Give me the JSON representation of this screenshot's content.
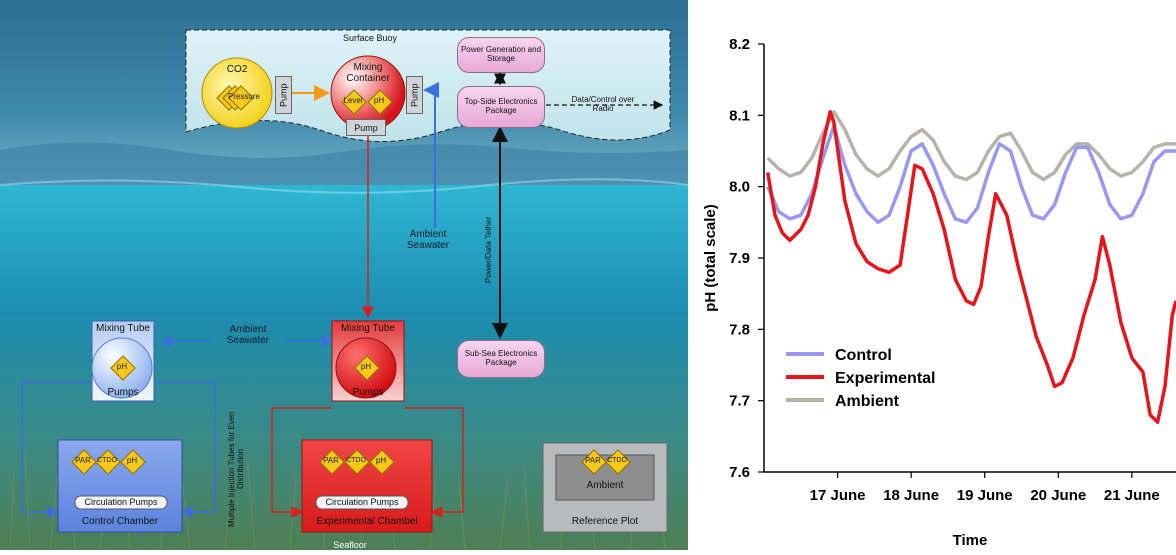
{
  "diagram": {
    "surface_buoy": "Surface Buoy",
    "co2": "CO2",
    "pressure": "Pressure",
    "pump_left": "Pump",
    "pump_right": "Pump",
    "pump_bottom": "Pump",
    "mixing_container": "Mixing Container",
    "level": "Level",
    "ph": "pH",
    "power_gen": "Power Generation and Storage",
    "topside": "Top-Side Electronics Package",
    "data_control": "Data/Control over Radio",
    "ambient_seawater_top": "Ambient Seawater",
    "ambient_seawater_mid": "Ambient Seawater",
    "power_tether": "Power/Data Tether",
    "subsea": "Sub-Sea Electronics Package",
    "mixing_tube_left": "Mixing Tube",
    "mixing_tube_right": "Mixing Tube",
    "pumps_left": "Pumps",
    "pumps_right": "Pumps",
    "par": "PAR",
    "ctdo": "CTDO",
    "circulation_pumps_left": "Circulation Pumps",
    "circulation_pumps_right": "Circulation Pumps",
    "control_chamber": "Control Chamber",
    "experimental_chamber": "Experimental Chambei",
    "injection_note": "Multiple Injection Tubes for Even Distribution",
    "ambient": "Ambient",
    "reference_plot": "Reference Plot",
    "seafloor": "Seafloor",
    "colors": {
      "control_blue": "#4a78d8",
      "experimental_red": "#e0201c",
      "power_pink": "#e9b0db",
      "diamond_yellow": "#f6c81a"
    }
  },
  "chart_data": {
    "type": "line",
    "xlabel": "Time",
    "ylabel": "pH (total scale)",
    "ylim": [
      7.6,
      8.2
    ],
    "yticks": [
      "7.6",
      "7.7",
      "7.8",
      "7.9",
      "8.0",
      "8.1",
      "8.2"
    ],
    "xlim": [
      16.0,
      21.6
    ],
    "xticks": [
      {
        "value": 17,
        "label": "17 June"
      },
      {
        "value": 18,
        "label": "18 June"
      },
      {
        "value": 19,
        "label": "19 June"
      },
      {
        "value": 20,
        "label": "20 June"
      },
      {
        "value": 21,
        "label": "21 June"
      }
    ],
    "legend_position": "bottom-left",
    "series": [
      {
        "name": "Control",
        "color": "#9898f0",
        "x": [
          16.05,
          16.2,
          16.35,
          16.5,
          16.65,
          16.8,
          16.95,
          17.1,
          17.25,
          17.4,
          17.55,
          17.7,
          17.85,
          18.0,
          18.15,
          18.3,
          18.45,
          18.6,
          18.75,
          18.9,
          19.05,
          19.2,
          19.35,
          19.5,
          19.65,
          19.8,
          19.95,
          20.1,
          20.25,
          20.4,
          20.55,
          20.7,
          20.85,
          21.0,
          21.15,
          21.3,
          21.45,
          21.6
        ],
        "values": [
          8.0,
          7.965,
          7.955,
          7.96,
          7.99,
          8.04,
          8.085,
          8.03,
          7.99,
          7.965,
          7.95,
          7.96,
          8.0,
          8.05,
          8.06,
          8.03,
          7.99,
          7.955,
          7.95,
          7.97,
          8.02,
          8.06,
          8.05,
          8.0,
          7.96,
          7.955,
          7.975,
          8.02,
          8.055,
          8.055,
          8.02,
          7.975,
          7.955,
          7.96,
          7.99,
          8.035,
          8.05,
          8.05
        ]
      },
      {
        "name": "Experimental",
        "color": "#e8141b",
        "x": [
          16.05,
          16.15,
          16.25,
          16.35,
          16.5,
          16.6,
          16.7,
          16.8,
          16.9,
          16.95,
          17.1,
          17.25,
          17.4,
          17.55,
          17.7,
          17.85,
          17.95,
          18.05,
          18.15,
          18.3,
          18.45,
          18.6,
          18.75,
          18.85,
          18.95,
          19.05,
          19.15,
          19.3,
          19.45,
          19.6,
          19.7,
          19.85,
          19.95,
          20.05,
          20.2,
          20.35,
          20.5,
          20.6,
          20.7,
          20.85,
          21.0,
          21.15,
          21.25,
          21.35,
          21.45,
          21.55,
          21.6
        ],
        "values": [
          8.02,
          7.96,
          7.935,
          7.925,
          7.94,
          7.96,
          8.0,
          8.06,
          8.105,
          8.09,
          7.98,
          7.92,
          7.895,
          7.885,
          7.88,
          7.89,
          7.96,
          8.03,
          8.025,
          7.99,
          7.94,
          7.87,
          7.84,
          7.835,
          7.86,
          7.93,
          7.99,
          7.96,
          7.89,
          7.83,
          7.79,
          7.75,
          7.72,
          7.725,
          7.76,
          7.82,
          7.87,
          7.93,
          7.89,
          7.81,
          7.76,
          7.74,
          7.68,
          7.67,
          7.72,
          7.82,
          7.84
        ]
      },
      {
        "name": "Ambient",
        "color": "#b4b4ac",
        "x": [
          16.05,
          16.2,
          16.35,
          16.5,
          16.65,
          16.8,
          16.95,
          17.1,
          17.25,
          17.4,
          17.55,
          17.7,
          17.85,
          18.0,
          18.15,
          18.3,
          18.45,
          18.6,
          18.75,
          18.9,
          19.05,
          19.2,
          19.35,
          19.5,
          19.65,
          19.8,
          19.95,
          20.1,
          20.25,
          20.4,
          20.55,
          20.7,
          20.85,
          21.0,
          21.15,
          21.3,
          21.45,
          21.6
        ],
        "values": [
          8.04,
          8.025,
          8.015,
          8.02,
          8.04,
          8.075,
          8.105,
          8.08,
          8.045,
          8.025,
          8.015,
          8.025,
          8.05,
          8.07,
          8.08,
          8.065,
          8.035,
          8.015,
          8.01,
          8.02,
          8.05,
          8.07,
          8.075,
          8.05,
          8.02,
          8.01,
          8.02,
          8.045,
          8.06,
          8.06,
          8.045,
          8.025,
          8.015,
          8.02,
          8.035,
          8.055,
          8.06,
          8.06
        ]
      }
    ]
  }
}
